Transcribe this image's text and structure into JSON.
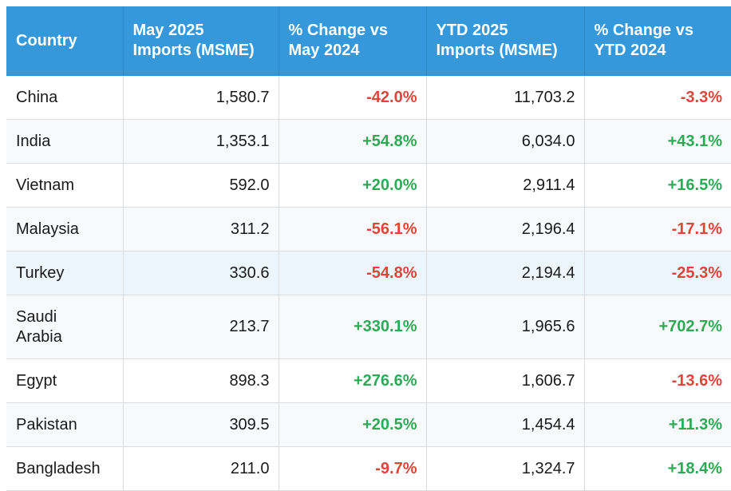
{
  "chart_data": {
    "type": "table",
    "columns": [
      "Country",
      "May 2025 Imports (MSME)",
      "% Change vs May 2024",
      "YTD 2025 Imports (MSME)",
      "% Change vs YTD 2024"
    ],
    "header_lines": [
      [
        "Country"
      ],
      [
        "May 2025",
        "Imports (MSME)"
      ],
      [
        "% Change vs",
        "May 2024"
      ],
      [
        "YTD 2025",
        "Imports (MSME)"
      ],
      [
        "% Change vs",
        "YTD 2024"
      ]
    ],
    "rows": [
      {
        "country": [
          "China"
        ],
        "may": "1,580.7",
        "may_change": "-42.0%",
        "ytd": "11,703.2",
        "ytd_change": "-3.3%"
      },
      {
        "country": [
          "India"
        ],
        "may": "1,353.1",
        "may_change": "+54.8%",
        "ytd": "6,034.0",
        "ytd_change": "+43.1%"
      },
      {
        "country": [
          "Vietnam"
        ],
        "may": "592.0",
        "may_change": "+20.0%",
        "ytd": "2,911.4",
        "ytd_change": "+16.5%"
      },
      {
        "country": [
          "Malaysia"
        ],
        "may": "311.2",
        "may_change": "-56.1%",
        "ytd": "2,196.4",
        "ytd_change": "-17.1%"
      },
      {
        "country": [
          "Turkey"
        ],
        "may": "330.6",
        "may_change": "-54.8%",
        "ytd": "2,194.4",
        "ytd_change": "-25.3%"
      },
      {
        "country": [
          "Saudi",
          "Arabia"
        ],
        "may": "213.7",
        "may_change": "+330.1%",
        "ytd": "1,965.6",
        "ytd_change": "+702.7%"
      },
      {
        "country": [
          "Egypt"
        ],
        "may": "898.3",
        "may_change": "+276.6%",
        "ytd": "1,606.7",
        "ytd_change": "-13.6%"
      },
      {
        "country": [
          "Pakistan"
        ],
        "may": "309.5",
        "may_change": "+20.5%",
        "ytd": "1,454.4",
        "ytd_change": "+11.3%"
      },
      {
        "country": [
          "Bangladesh"
        ],
        "may": "211.0",
        "may_change": "-9.7%",
        "ytd": "1,324.7",
        "ytd_change": "+18.4%"
      }
    ],
    "highlighted_row": "Turkey",
    "colors": {
      "header_bg": "#3498db",
      "positive": "#2eaa57",
      "negative": "#e0453a",
      "highlight_bg": "#ebf5fb"
    }
  }
}
